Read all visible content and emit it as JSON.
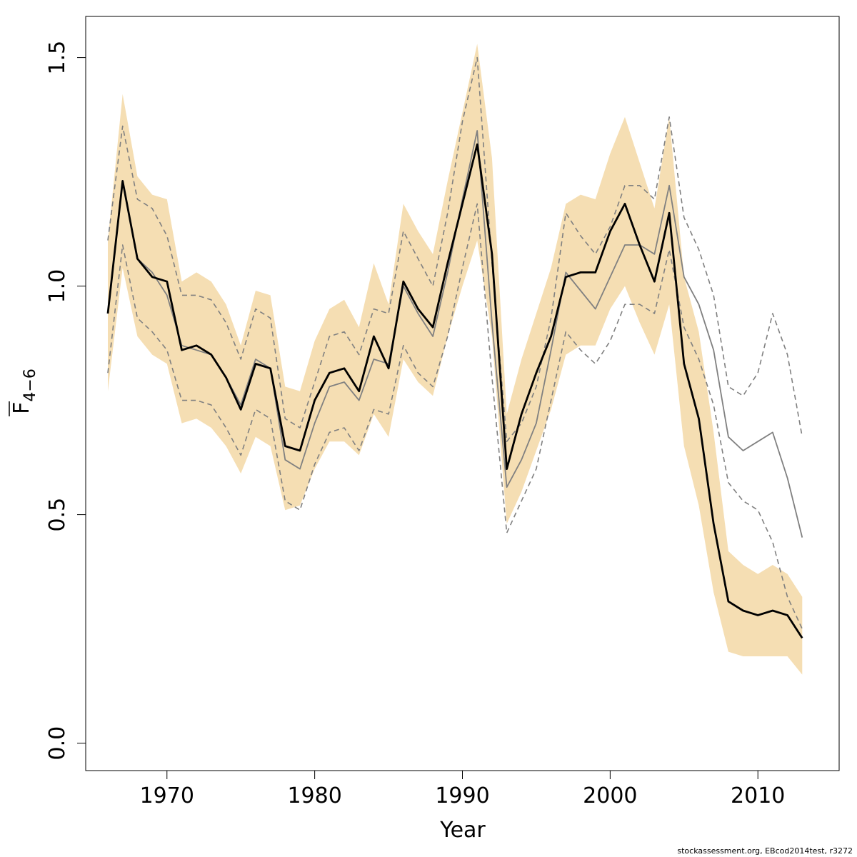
{
  "chart_data": {
    "type": "line",
    "title": "",
    "xlabel": "Year",
    "ylabel": {
      "base": "F",
      "subscript": "4−6",
      "overline": true
    },
    "xlim": [
      1964.5,
      2015.5
    ],
    "ylim": [
      -0.06,
      1.59
    ],
    "x_ticks": [
      1970,
      1980,
      1990,
      2000,
      2010
    ],
    "y_ticks": [
      0.0,
      0.5,
      1.0,
      1.5
    ],
    "y_tick_labels": [
      "0.0",
      "0.5",
      "1.0",
      "1.5"
    ],
    "grid": false,
    "legend": "none",
    "colors": {
      "band": "#f5deb3",
      "main": "#000000",
      "retro": "#808080",
      "dashed": "#808080"
    },
    "x": [
      1966,
      1967,
      1968,
      1969,
      1970,
      1971,
      1972,
      1973,
      1974,
      1975,
      1976,
      1977,
      1978,
      1979,
      1980,
      1981,
      1982,
      1983,
      1984,
      1985,
      1986,
      1987,
      1988,
      1989,
      1990,
      1991,
      1992,
      1993,
      1994,
      1995,
      1996,
      1997,
      1998,
      1999,
      2000,
      2001,
      2002,
      2003,
      2004,
      2005,
      2006,
      2007,
      2008,
      2009,
      2010,
      2011,
      2012,
      2013
    ],
    "series": [
      {
        "role": "band_upper",
        "values": [
          1.1,
          1.42,
          1.24,
          1.2,
          1.19,
          1.01,
          1.03,
          1.01,
          0.96,
          0.87,
          0.99,
          0.98,
          0.78,
          0.77,
          0.88,
          0.95,
          0.97,
          0.91,
          1.05,
          0.96,
          1.18,
          1.12,
          1.07,
          1.23,
          1.38,
          1.53,
          1.28,
          0.72,
          0.84,
          0.94,
          1.04,
          1.18,
          1.2,
          1.19,
          1.29,
          1.37,
          1.27,
          1.17,
          1.37,
          1.02,
          0.9,
          0.68,
          0.42,
          0.39,
          0.37,
          0.39,
          0.37,
          0.32
        ]
      },
      {
        "role": "band_lower",
        "values": [
          0.77,
          1.04,
          0.89,
          0.85,
          0.83,
          0.7,
          0.71,
          0.69,
          0.65,
          0.59,
          0.67,
          0.65,
          0.51,
          0.52,
          0.6,
          0.66,
          0.66,
          0.63,
          0.72,
          0.67,
          0.84,
          0.79,
          0.76,
          0.89,
          1.0,
          1.1,
          0.89,
          0.48,
          0.55,
          0.64,
          0.73,
          0.85,
          0.87,
          0.87,
          0.95,
          1.0,
          0.92,
          0.85,
          0.96,
          0.65,
          0.52,
          0.33,
          0.2,
          0.19,
          0.19,
          0.19,
          0.19,
          0.15
        ]
      },
      {
        "role": "retro_dashed_upper",
        "values": [
          1.1,
          1.35,
          1.19,
          1.17,
          1.11,
          0.98,
          0.98,
          0.97,
          0.92,
          0.84,
          0.95,
          0.93,
          0.71,
          0.69,
          0.79,
          0.89,
          0.9,
          0.85,
          0.95,
          0.94,
          1.12,
          1.06,
          1.0,
          1.16,
          1.36,
          1.5,
          1.05,
          0.66,
          0.7,
          0.78,
          0.93,
          1.16,
          1.11,
          1.07,
          1.13,
          1.22,
          1.22,
          1.19,
          1.37,
          1.15,
          1.08,
          0.98,
          0.78,
          0.76,
          0.81,
          0.94,
          0.85,
          0.67
        ]
      },
      {
        "role": "retro_dashed_lower",
        "values": [
          0.81,
          1.09,
          0.93,
          0.9,
          0.86,
          0.75,
          0.75,
          0.74,
          0.69,
          0.63,
          0.73,
          0.71,
          0.53,
          0.51,
          0.61,
          0.68,
          0.69,
          0.64,
          0.73,
          0.72,
          0.87,
          0.81,
          0.78,
          0.89,
          1.04,
          1.18,
          0.8,
          0.46,
          0.53,
          0.6,
          0.75,
          0.9,
          0.86,
          0.83,
          0.88,
          0.96,
          0.96,
          0.94,
          1.08,
          0.91,
          0.84,
          0.74,
          0.57,
          0.53,
          0.51,
          0.44,
          0.32,
          0.25
        ]
      },
      {
        "role": "retro_median",
        "values": [
          0.94,
          1.23,
          1.06,
          1.03,
          0.98,
          0.87,
          0.86,
          0.85,
          0.8,
          0.74,
          0.84,
          0.82,
          0.62,
          0.6,
          0.7,
          0.78,
          0.79,
          0.75,
          0.84,
          0.83,
          1.0,
          0.94,
          0.89,
          1.03,
          1.19,
          1.34,
          0.92,
          0.56,
          0.62,
          0.7,
          0.86,
          1.03,
          0.99,
          0.95,
          1.02,
          1.09,
          1.09,
          1.07,
          1.22,
          1.02,
          0.96,
          0.86,
          0.67,
          0.64,
          0.66,
          0.68,
          0.58,
          0.45
        ]
      },
      {
        "role": "main",
        "values": [
          0.94,
          1.23,
          1.06,
          1.02,
          1.01,
          0.86,
          0.87,
          0.85,
          0.8,
          0.73,
          0.83,
          0.82,
          0.65,
          0.64,
          0.75,
          0.81,
          0.82,
          0.77,
          0.89,
          0.82,
          1.01,
          0.95,
          0.91,
          1.05,
          1.18,
          1.31,
          1.07,
          0.6,
          0.72,
          0.81,
          0.89,
          1.02,
          1.03,
          1.03,
          1.12,
          1.18,
          1.09,
          1.01,
          1.16,
          0.83,
          0.71,
          0.48,
          0.31,
          0.29,
          0.28,
          0.29,
          0.28,
          0.23
        ]
      }
    ]
  },
  "credit": "stockassessment.org, EBcod2014test, r3272"
}
